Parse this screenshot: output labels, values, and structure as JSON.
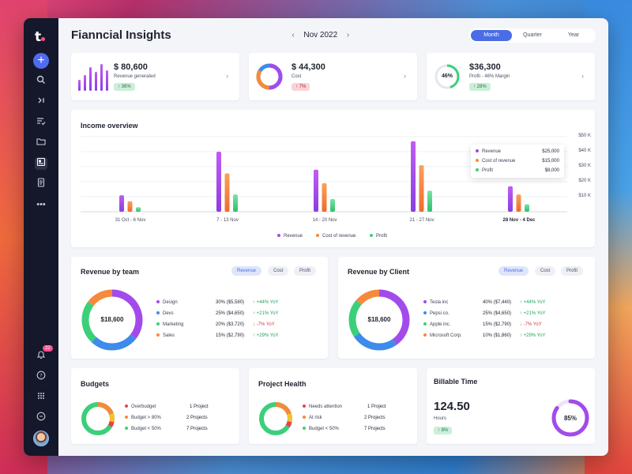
{
  "app": {
    "title": "Fianncial Insights",
    "month": "Nov 2022",
    "periods": [
      "Month",
      "Quarter",
      "Year"
    ],
    "active_period": "Month",
    "notification_count": "22"
  },
  "colors": {
    "purple": "#a24bea",
    "orange": "#f58a3a",
    "green": "#3ccf7a",
    "blue": "#3d8bea",
    "red": "#e8424b",
    "accent": "#4a6de5"
  },
  "sidebar": {
    "icons": [
      "add-icon",
      "search-icon",
      "collapse-icon",
      "tasks-icon",
      "folder-icon",
      "dashboard-icon",
      "document-icon",
      "more-icon",
      "bell-icon",
      "help-icon",
      "grid-icon",
      "logout-icon"
    ]
  },
  "kpis": [
    {
      "value": "$ 80,600",
      "label": "Revenue generated",
      "change": "36%",
      "direction": "up"
    },
    {
      "value": "$ 44,300",
      "label": "Cost",
      "change": "7%",
      "direction": "down"
    },
    {
      "value": "$36,300",
      "label": "Profit - 46% Margin",
      "change": "28%",
      "direction": "up",
      "gauge": "46%"
    }
  ],
  "income": {
    "title": "Income overview",
    "legend": [
      "Revenue",
      "Cost of revenue",
      "Profit"
    ],
    "tooltip": {
      "rows": [
        {
          "label": "Revenue",
          "value": "$25,000"
        },
        {
          "label": "Cost of revenue",
          "value": "$15,000"
        },
        {
          "label": "Profit",
          "value": "$8,000"
        }
      ]
    }
  },
  "chart_data": {
    "type": "bar",
    "title": "Income overview",
    "categories": [
      "31 Oct - 6 Nov",
      "7 - 13 Nov",
      "14 - 20 Nov",
      "21 - 27 Nov",
      "28 Nov - 4 Dec"
    ],
    "series": [
      {
        "name": "Revenue",
        "values": [
          11000,
          40000,
          28000,
          47000,
          17000
        ]
      },
      {
        "name": "Cost of revenue",
        "values": [
          7000,
          25500,
          19000,
          31000,
          11500
        ]
      },
      {
        "name": "Profit",
        "values": [
          3000,
          11500,
          8500,
          14000,
          5000
        ]
      }
    ],
    "y_ticks": [
      "$10 K",
      "$20 K",
      "$30 K",
      "$40 K",
      "$50 K"
    ],
    "ylim": [
      0,
      50000
    ],
    "grid": true,
    "legend_position": "bottom"
  },
  "team": {
    "title": "Revenue by team",
    "tabs": [
      "Revenue",
      "Cost",
      "Profit"
    ],
    "total": "$18,600",
    "rows": [
      {
        "name": "Design",
        "value": "30% ($5,580)",
        "yoy": "+44% YoY",
        "dir": "up"
      },
      {
        "name": "Devs",
        "value": "25% ($4,650)",
        "yoy": "+21% YoY",
        "dir": "up"
      },
      {
        "name": "Marketing",
        "value": "20% ($3,720)",
        "yoy": "-7% YoY",
        "dir": "down"
      },
      {
        "name": "Sales",
        "value": "15% ($2,790)",
        "yoy": "+29% YoY",
        "dir": "up"
      }
    ]
  },
  "client": {
    "title": "Revenue by Client",
    "tabs": [
      "Revenue",
      "Cost",
      "Profit"
    ],
    "total": "$18,600",
    "rows": [
      {
        "name": "Tesla inc",
        "value": "40% ($7,440)",
        "yoy": "+44% YoY",
        "dir": "up"
      },
      {
        "name": "Pepsi co.",
        "value": "25% ($4,650)",
        "yoy": "+21% YoY",
        "dir": "up"
      },
      {
        "name": "Apple inc.",
        "value": "15% ($2,790)",
        "yoy": "-7% YoY",
        "dir": "down"
      },
      {
        "name": "Microsoft Corp.",
        "value": "10% ($1,860)",
        "yoy": "+29% YoY",
        "dir": "up"
      }
    ]
  },
  "budgets": {
    "title": "Budgets",
    "rows": [
      {
        "label": "Overbudget",
        "value": "1 Project"
      },
      {
        "label": "Budget > 80%",
        "value": "2 Projects"
      },
      {
        "label": "Budget < 50%",
        "value": "7 Projects"
      }
    ]
  },
  "health": {
    "title": "Project Health",
    "rows": [
      {
        "label": "Needs attention",
        "value": "1 Project"
      },
      {
        "label": "At risk",
        "value": "2 Projects"
      },
      {
        "label": "Budget < 50%",
        "value": "7 Projects"
      }
    ]
  },
  "billable": {
    "title": "Billable Time",
    "hours": "124.50",
    "hours_label": "Hours",
    "change": "8%",
    "percent": "85%",
    "fraction": 0.85
  }
}
